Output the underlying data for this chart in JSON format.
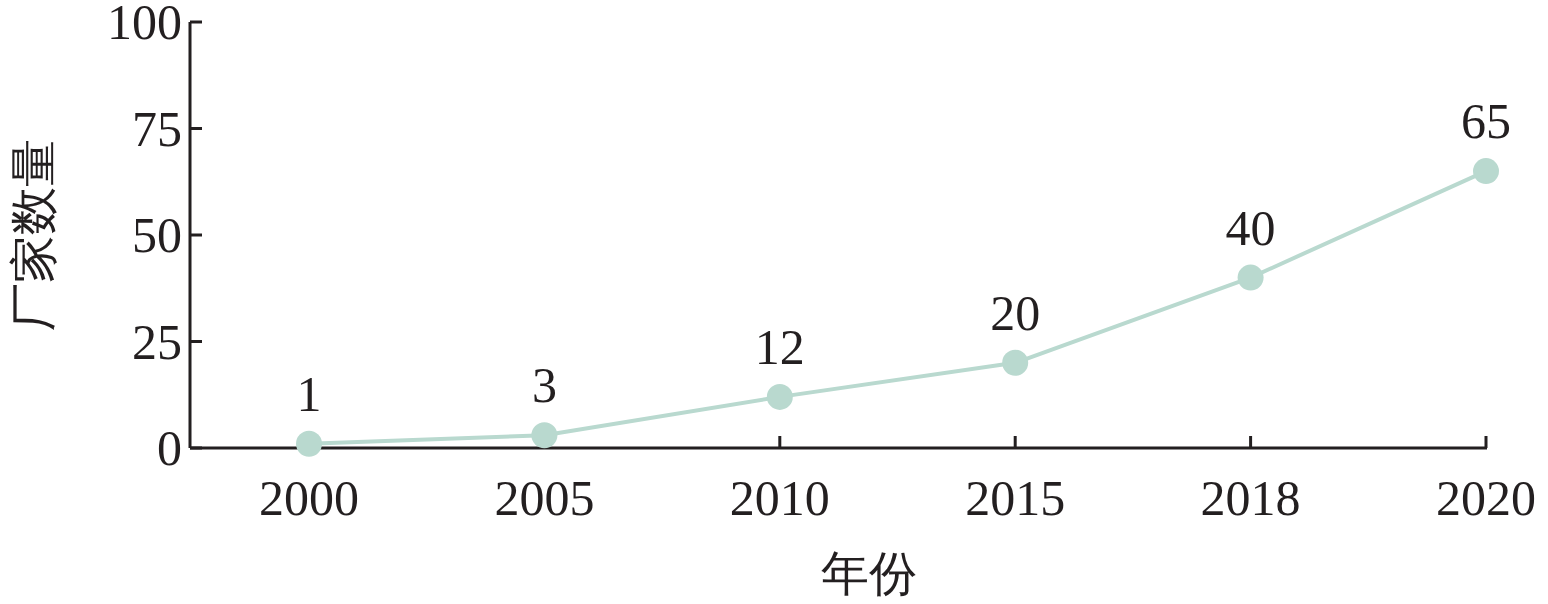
{
  "chart_data": {
    "type": "line",
    "xlabel": "年份",
    "ylabel": "厂家数量",
    "categories": [
      "2000",
      "2005",
      "2010",
      "2015",
      "2018",
      "2020"
    ],
    "values": [
      1,
      3,
      12,
      20,
      40,
      65
    ],
    "color": "#b9d9cf",
    "marker": "circle",
    "data_labels": true,
    "ylim": [
      0,
      100
    ],
    "yticks": [
      0,
      25,
      50,
      75,
      100
    ]
  }
}
